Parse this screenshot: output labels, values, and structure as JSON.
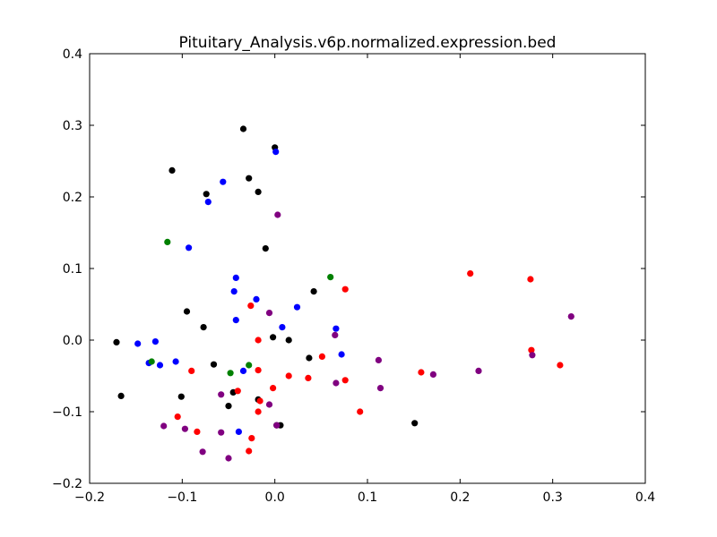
{
  "chart_data": {
    "type": "scatter",
    "title": "Pituitary_Analysis.v6p.normalized.expression.bed",
    "xlabel": "",
    "ylabel": "",
    "xlim": [
      -0.2,
      0.4
    ],
    "ylim": [
      -0.2,
      0.4
    ],
    "x_ticks": [
      "−0.2",
      "−0.1",
      "0.0",
      "0.1",
      "0.2",
      "0.3",
      "0.4"
    ],
    "y_ticks": [
      "−0.2",
      "−0.1",
      "0.0",
      "0.1",
      "0.2",
      "0.3",
      "0.4"
    ],
    "grid": false,
    "series": [
      {
        "color": "#000000",
        "points": [
          [
            -0.034,
            0.295
          ],
          [
            0.0,
            0.269
          ],
          [
            -0.111,
            0.237
          ],
          [
            -0.028,
            0.226
          ],
          [
            -0.074,
            0.204
          ],
          [
            -0.018,
            0.207
          ],
          [
            -0.01,
            0.128
          ],
          [
            0.042,
            0.068
          ],
          [
            -0.095,
            0.04
          ],
          [
            -0.077,
            0.018
          ],
          [
            -0.171,
            -0.003
          ],
          [
            -0.002,
            0.004
          ],
          [
            0.015,
            0.0
          ],
          [
            0.037,
            -0.025
          ],
          [
            -0.066,
            -0.034
          ],
          [
            -0.166,
            -0.078
          ],
          [
            -0.101,
            -0.079
          ],
          [
            -0.045,
            -0.073
          ],
          [
            -0.05,
            -0.092
          ],
          [
            -0.018,
            -0.083
          ],
          [
            0.002,
            -0.119
          ],
          [
            0.006,
            -0.119
          ],
          [
            0.151,
            -0.116
          ]
        ]
      },
      {
        "color": "#0000ff",
        "points": [
          [
            0.001,
            0.263
          ],
          [
            -0.056,
            0.221
          ],
          [
            -0.072,
            0.193
          ],
          [
            -0.093,
            0.129
          ],
          [
            -0.042,
            0.087
          ],
          [
            -0.044,
            0.068
          ],
          [
            -0.02,
            0.057
          ],
          [
            0.024,
            0.046
          ],
          [
            -0.042,
            0.028
          ],
          [
            0.008,
            0.018
          ],
          [
            0.066,
            0.016
          ],
          [
            -0.148,
            -0.005
          ],
          [
            -0.129,
            -0.002
          ],
          [
            -0.136,
            -0.032
          ],
          [
            -0.124,
            -0.035
          ],
          [
            -0.107,
            -0.03
          ],
          [
            0.072,
            -0.02
          ],
          [
            -0.034,
            -0.043
          ],
          [
            -0.039,
            -0.128
          ]
        ]
      },
      {
        "color": "#008000",
        "points": [
          [
            -0.116,
            0.137
          ],
          [
            0.06,
            0.088
          ],
          [
            -0.133,
            -0.03
          ],
          [
            -0.048,
            -0.046
          ],
          [
            -0.028,
            -0.035
          ]
        ]
      },
      {
        "color": "#ff0000",
        "points": [
          [
            0.211,
            0.093
          ],
          [
            0.276,
            0.085
          ],
          [
            0.076,
            0.071
          ],
          [
            -0.026,
            0.048
          ],
          [
            -0.018,
            0.0
          ],
          [
            0.277,
            -0.014
          ],
          [
            0.308,
            -0.035
          ],
          [
            0.051,
            -0.023
          ],
          [
            -0.09,
            -0.043
          ],
          [
            -0.018,
            -0.042
          ],
          [
            0.158,
            -0.045
          ],
          [
            0.015,
            -0.05
          ],
          [
            0.036,
            -0.053
          ],
          [
            0.076,
            -0.056
          ],
          [
            -0.04,
            -0.071
          ],
          [
            -0.002,
            -0.067
          ],
          [
            -0.016,
            -0.085
          ],
          [
            -0.018,
            -0.1
          ],
          [
            0.092,
            -0.1
          ],
          [
            -0.105,
            -0.107
          ],
          [
            -0.084,
            -0.128
          ],
          [
            -0.025,
            -0.137
          ],
          [
            -0.028,
            -0.155
          ]
        ]
      },
      {
        "color": "#800080",
        "points": [
          [
            0.003,
            0.175
          ],
          [
            0.32,
            0.033
          ],
          [
            -0.006,
            0.038
          ],
          [
            0.065,
            0.007
          ],
          [
            0.112,
            -0.028
          ],
          [
            0.278,
            -0.021
          ],
          [
            0.171,
            -0.048
          ],
          [
            0.22,
            -0.043
          ],
          [
            0.114,
            -0.067
          ],
          [
            0.066,
            -0.06
          ],
          [
            -0.058,
            -0.076
          ],
          [
            -0.006,
            -0.09
          ],
          [
            -0.12,
            -0.12
          ],
          [
            -0.097,
            -0.124
          ],
          [
            -0.058,
            -0.129
          ],
          [
            0.002,
            -0.119
          ],
          [
            -0.078,
            -0.156
          ],
          [
            -0.05,
            -0.165
          ]
        ]
      }
    ]
  }
}
